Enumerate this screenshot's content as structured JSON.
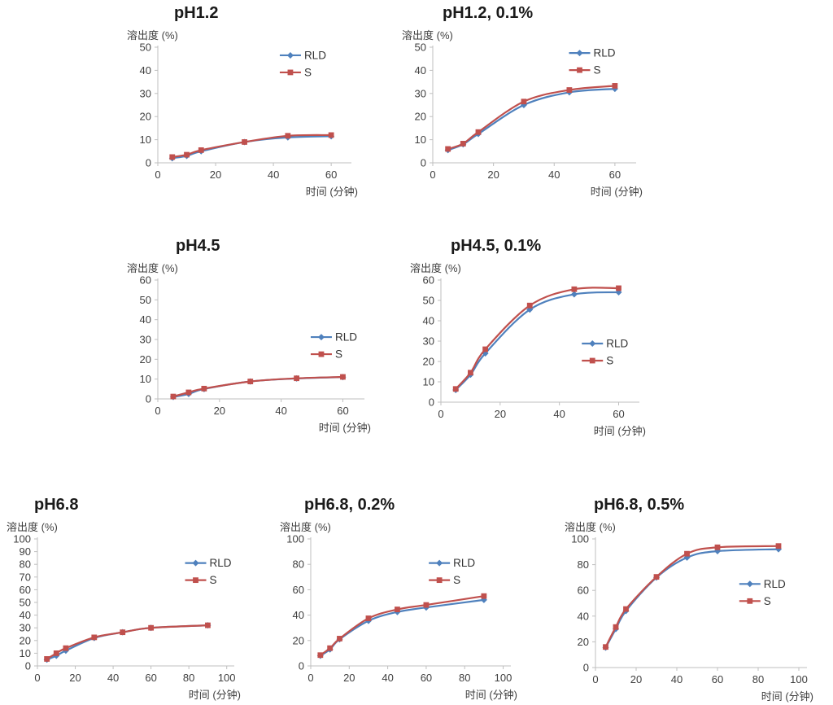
{
  "page": {
    "description_labels": {
      "ylabel": "溶出度 (%)",
      "xlabel": "时间 (分钟)"
    }
  },
  "colors": {
    "rld": "#4F81BD",
    "s": "#C0504D",
    "axis_line": "#BFBFBF",
    "tick_text": "#3F3F3F",
    "title_text": "#1A1A1A",
    "legend_text": "#333333"
  },
  "chart_data": [
    {
      "type": "line",
      "title": "pH1.2",
      "ylabel": "溶出度 (%)",
      "xlabel": "时间 (分钟)",
      "x": [
        5,
        10,
        15,
        30,
        45,
        60
      ],
      "series": [
        {
          "name": "RLD",
          "color": "#4F81BD",
          "marker": "diamond",
          "values": [
            2,
            3,
            5,
            9,
            11,
            11.5
          ]
        },
        {
          "name": "S",
          "color": "#C0504D",
          "marker": "square",
          "values": [
            2.5,
            3.5,
            5.5,
            9,
            11.7,
            12
          ]
        }
      ],
      "xlim": [
        0,
        67
      ],
      "xticks": [
        0,
        20,
        40,
        60
      ],
      "ylim": [
        0,
        50
      ],
      "yticks": [
        0,
        10,
        20,
        30,
        40,
        50
      ],
      "grid": false,
      "legend_position": "inside-top-right",
      "legend": {
        "fx": 0.63,
        "fy": 0.07
      }
    },
    {
      "type": "line",
      "title": "pH1.2, 0.1%",
      "ylabel": "溶出度 (%)",
      "xlabel": "时间 (分钟)",
      "x": [
        5,
        10,
        15,
        30,
        45,
        60
      ],
      "series": [
        {
          "name": "RLD",
          "color": "#4F81BD",
          "marker": "diamond",
          "values": [
            5.5,
            8,
            12.5,
            25,
            30.5,
            32
          ]
        },
        {
          "name": "S",
          "color": "#C0504D",
          "marker": "square",
          "values": [
            6,
            8.3,
            13.3,
            26.5,
            31.5,
            33.3
          ]
        }
      ],
      "xlim": [
        0,
        67
      ],
      "xticks": [
        0,
        20,
        40,
        60
      ],
      "ylim": [
        0,
        50
      ],
      "yticks": [
        0,
        10,
        20,
        30,
        40,
        50
      ],
      "grid": false,
      "legend_position": "inside-top-right",
      "legend": {
        "fx": 0.67,
        "fy": 0.05
      }
    },
    {
      "type": "line",
      "title": "pH4.5",
      "ylabel": "溶出度 (%)",
      "xlabel": "时间 (分钟)",
      "x": [
        5,
        10,
        15,
        30,
        45,
        60
      ],
      "series": [
        {
          "name": "RLD",
          "color": "#4F81BD",
          "marker": "diamond",
          "values": [
            1,
            2.5,
            5,
            8.8,
            10.3,
            11
          ]
        },
        {
          "name": "S",
          "color": "#C0504D",
          "marker": "square",
          "values": [
            1.2,
            3.3,
            5.2,
            8.8,
            10.4,
            11.1
          ]
        }
      ],
      "xlim": [
        0,
        67
      ],
      "xticks": [
        0,
        20,
        40,
        60
      ],
      "ylim": [
        0,
        60
      ],
      "yticks": [
        0,
        10,
        20,
        30,
        40,
        50,
        60
      ],
      "grid": false,
      "legend_position": "inside-middle-right",
      "legend": {
        "fx": 0.74,
        "fy": 0.48
      }
    },
    {
      "type": "line",
      "title": "pH4.5, 0.1%",
      "ylabel": "溶出度 (%)",
      "xlabel": "时间 (分钟)",
      "x": [
        5,
        10,
        15,
        30,
        45,
        60
      ],
      "series": [
        {
          "name": "RLD",
          "color": "#4F81BD",
          "marker": "diamond",
          "values": [
            6,
            13.5,
            24,
            45.5,
            53,
            54
          ]
        },
        {
          "name": "S",
          "color": "#C0504D",
          "marker": "square",
          "values": [
            6.5,
            14.5,
            26,
            47.5,
            55.5,
            56
          ]
        }
      ],
      "xlim": [
        0,
        67
      ],
      "xticks": [
        0,
        20,
        40,
        60
      ],
      "ylim": [
        0,
        60
      ],
      "yticks": [
        0,
        10,
        20,
        30,
        40,
        50,
        60
      ],
      "grid": false,
      "legend_position": "inside-middle-right",
      "legend": {
        "fx": 0.71,
        "fy": 0.52
      }
    },
    {
      "type": "line",
      "title": "pH6.8",
      "ylabel": "溶出度 (%)",
      "xlabel": "时间 (分钟)",
      "x": [
        5,
        10,
        15,
        30,
        45,
        60,
        90
      ],
      "series": [
        {
          "name": "RLD",
          "color": "#4F81BD",
          "marker": "diamond",
          "values": [
            5,
            8,
            12,
            22,
            26.5,
            30,
            32
          ]
        },
        {
          "name": "S",
          "color": "#C0504D",
          "marker": "square",
          "values": [
            5.5,
            10,
            14,
            22.5,
            26.5,
            30,
            32
          ]
        }
      ],
      "xlim": [
        0,
        104
      ],
      "xticks": [
        0,
        20,
        40,
        60,
        80,
        100
      ],
      "ylim": [
        0,
        100
      ],
      "yticks": [
        0,
        10,
        20,
        30,
        40,
        50,
        60,
        70,
        80,
        90,
        100
      ],
      "grid": false,
      "legend_position": "inside-top-right",
      "legend": {
        "fx": 0.75,
        "fy": 0.19
      }
    },
    {
      "type": "line",
      "title": "pH6.8, 0.2%",
      "ylabel": "溶出度 (%)",
      "xlabel": "时间 (分钟)",
      "x": [
        5,
        10,
        15,
        30,
        45,
        60,
        90
      ],
      "series": [
        {
          "name": "RLD",
          "color": "#4F81BD",
          "marker": "diamond",
          "values": [
            8,
            13,
            21,
            35.5,
            42.5,
            46,
            52
          ]
        },
        {
          "name": "S",
          "color": "#C0504D",
          "marker": "square",
          "values": [
            8.5,
            14,
            21.5,
            37.5,
            44.5,
            48,
            55
          ]
        }
      ],
      "xlim": [
        0,
        104
      ],
      "xticks": [
        0,
        20,
        40,
        60,
        80,
        100
      ],
      "ylim": [
        0,
        100
      ],
      "yticks": [
        0,
        20,
        40,
        60,
        80,
        100
      ],
      "grid": false,
      "legend_position": "inside-top-right",
      "legend": {
        "fx": 0.59,
        "fy": 0.19
      }
    },
    {
      "type": "line",
      "title": "pH6.8, 0.5%",
      "ylabel": "溶出度 (%)",
      "xlabel": "时间 (分钟)",
      "x": [
        5,
        10,
        15,
        30,
        45,
        60,
        90
      ],
      "series": [
        {
          "name": "RLD",
          "color": "#4F81BD",
          "marker": "diamond",
          "values": [
            15.5,
            30,
            44,
            70,
            85.5,
            90.5,
            92
          ]
        },
        {
          "name": "S",
          "color": "#C0504D",
          "marker": "square",
          "values": [
            16,
            31.5,
            45.5,
            70.5,
            88.5,
            93.5,
            94.5
          ]
        }
      ],
      "xlim": [
        0,
        104
      ],
      "xticks": [
        0,
        20,
        40,
        60,
        80,
        100
      ],
      "ylim": [
        0,
        100
      ],
      "yticks": [
        0,
        20,
        40,
        60,
        80,
        100
      ],
      "grid": false,
      "legend_position": "inside-middle-right",
      "legend": {
        "fx": 0.68,
        "fy": 0.35
      }
    }
  ]
}
